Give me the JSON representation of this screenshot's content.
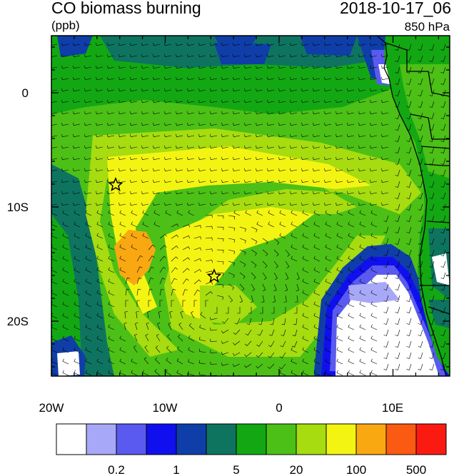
{
  "header": {
    "title": "CO biomass burning",
    "units": "(ppb)",
    "datetime": "2018-10-17_06",
    "level": "850 hPa"
  },
  "axes": {
    "lon_ticks": [
      "20W",
      "10W",
      "0",
      "10E"
    ],
    "lat_ticks": [
      "0",
      "10S",
      "20S"
    ]
  },
  "colorbar": {
    "colors": [
      "#ffffff",
      "#a8a8f8",
      "#5a5af0",
      "#1010ee",
      "#0f3ea8",
      "#0e7460",
      "#13a813",
      "#4cc016",
      "#a6dc10",
      "#f4f412",
      "#f9a812",
      "#fb5a12",
      "#fb1a12"
    ],
    "labels": [
      "0.2",
      "1",
      "5",
      "20",
      "100",
      "500"
    ]
  },
  "markers": [
    {
      "name": "star-marker-north",
      "lon": -14.4,
      "lat": -8.0
    },
    {
      "name": "star-marker-south",
      "lon": -5.8,
      "lat": -16.0
    }
  ]
}
